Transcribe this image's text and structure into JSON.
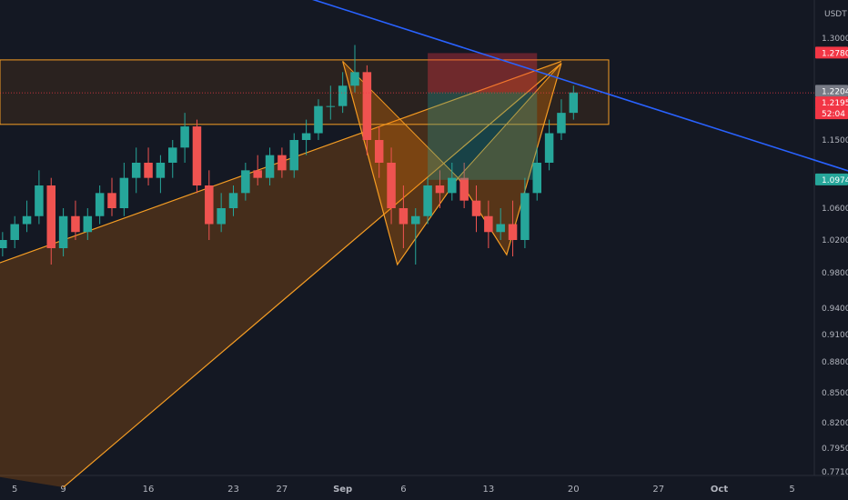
{
  "chart_data": {
    "type": "candlestick",
    "currency": "USDT",
    "y_ticks": [
      1.3,
      1.15,
      1.06,
      1.02,
      0.98,
      0.94,
      0.91,
      0.88,
      0.85,
      0.82,
      0.795,
      0.771
    ],
    "y_tick_labels": [
      "1.3000",
      "1.1500",
      "1.0600",
      "1.0200",
      "0.9800",
      "0.9400",
      "0.9100",
      "0.8800",
      "0.8500",
      "0.8200",
      "0.7950",
      "0.7710"
    ],
    "x_ticks": [
      "5",
      "9",
      "16",
      "23",
      "27",
      "Sep",
      "6",
      "13",
      "20",
      "27",
      "Oct",
      "5"
    ],
    "price_labels": [
      {
        "id": "tp_high",
        "value": 1.278,
        "text": "1.2780",
        "color": "#f23645"
      },
      {
        "id": "entry",
        "value": 1.2204,
        "text": "1.2204",
        "color": "#787b86"
      },
      {
        "id": "current",
        "value": 1.2195,
        "text": "1.2195",
        "color": "#f23645"
      },
      {
        "id": "countdown",
        "value": 1.2195,
        "text": "52:04",
        "color": "#f23645"
      },
      {
        "id": "stop_target",
        "value": 1.0974,
        "text": "1.0974",
        "color": "#26a69a"
      }
    ],
    "resistance_zone": {
      "top": 1.268,
      "bottom": 1.173
    },
    "position": {
      "stop": 1.278,
      "entry": 1.2204,
      "target": 1.0974,
      "start_day": 36,
      "end_day": 45
    },
    "trendline": {
      "x1_day": 22.0,
      "y1": 1.375,
      "x2_day": 73.0,
      "y2": 1.097
    },
    "wedge": {
      "upper": [
        [
          0,
          0.988
        ],
        [
          47,
          1.266
        ]
      ],
      "lower": [
        [
          6,
          0.755
        ],
        [
          47,
          1.263
        ]
      ]
    },
    "harmonic_pattern": [
      [
        29,
        1.266
      ],
      [
        33.5,
        0.99
      ],
      [
        38.5,
        1.1
      ],
      [
        42.5,
        1.002
      ],
      [
        47,
        1.263
      ]
    ],
    "candles": [
      [
        1.01,
        1.03,
        1.0,
        1.02
      ],
      [
        1.02,
        1.05,
        1.01,
        1.04
      ],
      [
        1.04,
        1.07,
        1.03,
        1.05
      ],
      [
        1.05,
        1.11,
        1.04,
        1.09
      ],
      [
        1.09,
        1.1,
        0.99,
        1.01
      ],
      [
        1.01,
        1.06,
        1.0,
        1.05
      ],
      [
        1.05,
        1.07,
        1.02,
        1.03
      ],
      [
        1.03,
        1.06,
        1.02,
        1.05
      ],
      [
        1.05,
        1.09,
        1.04,
        1.08
      ],
      [
        1.08,
        1.1,
        1.05,
        1.06
      ],
      [
        1.06,
        1.12,
        1.05,
        1.1
      ],
      [
        1.1,
        1.14,
        1.08,
        1.12
      ],
      [
        1.12,
        1.14,
        1.09,
        1.1
      ],
      [
        1.1,
        1.13,
        1.08,
        1.12
      ],
      [
        1.12,
        1.15,
        1.1,
        1.14
      ],
      [
        1.14,
        1.19,
        1.12,
        1.17
      ],
      [
        1.17,
        1.18,
        1.08,
        1.09
      ],
      [
        1.09,
        1.11,
        1.02,
        1.04
      ],
      [
        1.04,
        1.08,
        1.03,
        1.06
      ],
      [
        1.06,
        1.09,
        1.05,
        1.08
      ],
      [
        1.08,
        1.12,
        1.07,
        1.11
      ],
      [
        1.11,
        1.13,
        1.09,
        1.1
      ],
      [
        1.1,
        1.14,
        1.09,
        1.13
      ],
      [
        1.13,
        1.14,
        1.1,
        1.11
      ],
      [
        1.11,
        1.16,
        1.1,
        1.15
      ],
      [
        1.15,
        1.18,
        1.13,
        1.16
      ],
      [
        1.16,
        1.21,
        1.15,
        1.2
      ],
      [
        1.2,
        1.23,
        1.18,
        1.2
      ],
      [
        1.2,
        1.25,
        1.19,
        1.23
      ],
      [
        1.23,
        1.29,
        1.22,
        1.25
      ],
      [
        1.25,
        1.26,
        1.13,
        1.15
      ],
      [
        1.15,
        1.17,
        1.1,
        1.12
      ],
      [
        1.12,
        1.14,
        1.04,
        1.06
      ],
      [
        1.06,
        1.09,
        1.01,
        1.04
      ],
      [
        1.04,
        1.06,
        0.99,
        1.05
      ],
      [
        1.05,
        1.1,
        1.04,
        1.09
      ],
      [
        1.09,
        1.11,
        1.06,
        1.08
      ],
      [
        1.08,
        1.12,
        1.07,
        1.1
      ],
      [
        1.1,
        1.12,
        1.06,
        1.07
      ],
      [
        1.07,
        1.09,
        1.03,
        1.05
      ],
      [
        1.05,
        1.07,
        1.01,
        1.03
      ],
      [
        1.03,
        1.06,
        1.02,
        1.04
      ],
      [
        1.04,
        1.07,
        1.0,
        1.02
      ],
      [
        1.02,
        1.1,
        1.01,
        1.08
      ],
      [
        1.08,
        1.14,
        1.07,
        1.12
      ],
      [
        1.12,
        1.18,
        1.11,
        1.16
      ],
      [
        1.16,
        1.21,
        1.15,
        1.19
      ],
      [
        1.19,
        1.23,
        1.18,
        1.22
      ]
    ]
  }
}
